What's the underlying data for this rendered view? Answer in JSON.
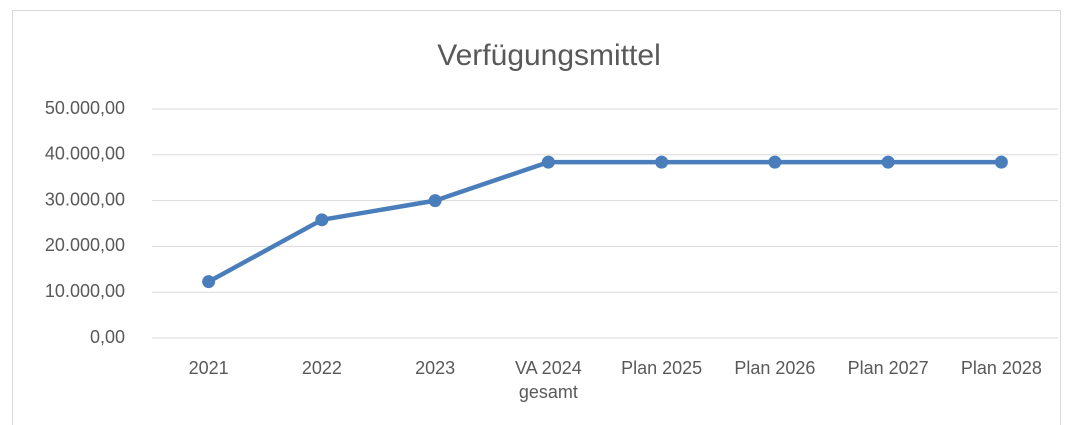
{
  "chart_data": {
    "type": "line",
    "title": "Verfügungsmittel",
    "categories": [
      "2021",
      "2022",
      "2023",
      "VA 2024 gesamt",
      "Plan 2025",
      "Plan 2026",
      "Plan 2027",
      "Plan 2028"
    ],
    "series": [
      {
        "name": "Verfügungsmittel",
        "color": "#4a7ebb",
        "values": [
          12300,
          25800,
          30000,
          38400,
          38400,
          38400,
          38400,
          38400
        ]
      }
    ],
    "ylim": [
      0,
      50000
    ],
    "yticks": [
      {
        "value": 0,
        "label": "0,00"
      },
      {
        "value": 10000,
        "label": "10.000,00"
      },
      {
        "value": 20000,
        "label": "20.000,00"
      },
      {
        "value": 30000,
        "label": "30.000,00"
      },
      {
        "value": 40000,
        "label": "40.000,00"
      },
      {
        "value": 50000,
        "label": "50.000,00"
      }
    ],
    "grid": true
  }
}
